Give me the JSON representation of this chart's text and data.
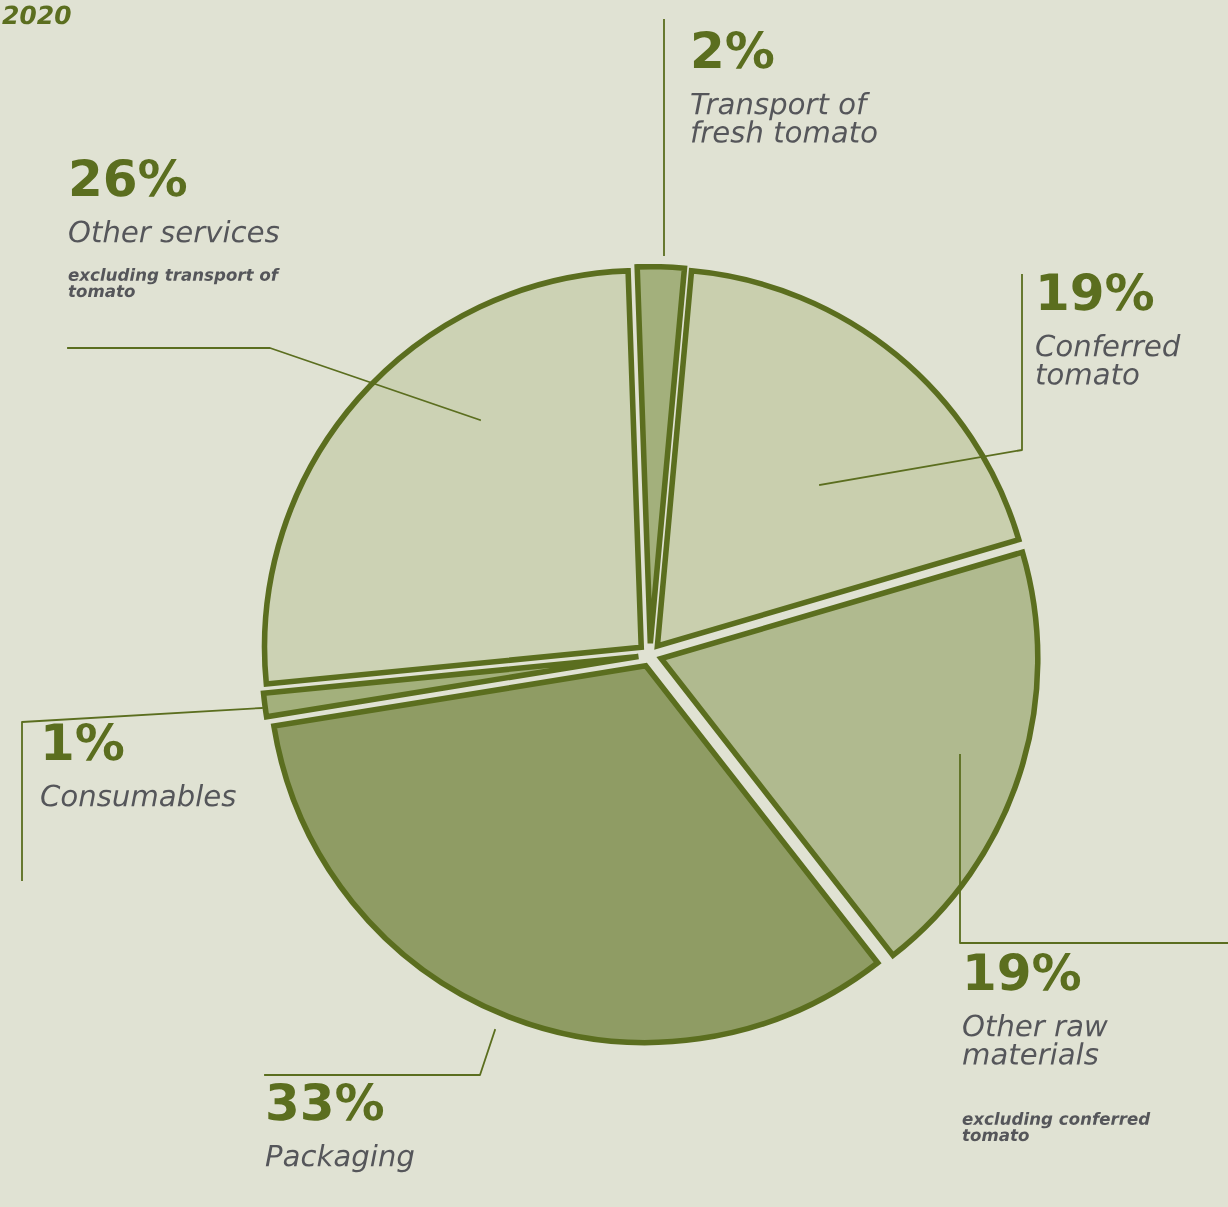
{
  "chart_data": {
    "type": "pie",
    "title": "2020",
    "categories": [
      "Transport of fresh tomato",
      "Conferred tomato",
      "Other raw materials",
      "Packaging",
      "Consumables",
      "Other services"
    ],
    "values": [
      2,
      19,
      19,
      33,
      1,
      26
    ],
    "value_labels": [
      "2%",
      "19%",
      "19%",
      "33%",
      "1%",
      "26%"
    ],
    "colors": [
      "#a3b07c",
      "#c9cfae",
      "#b0ba8f",
      "#8f9c64",
      "#a3b07c",
      "#ccd2b4"
    ],
    "annotations": [
      "excluding transport of tomato",
      "excluding conferred tomato"
    ]
  }
}
